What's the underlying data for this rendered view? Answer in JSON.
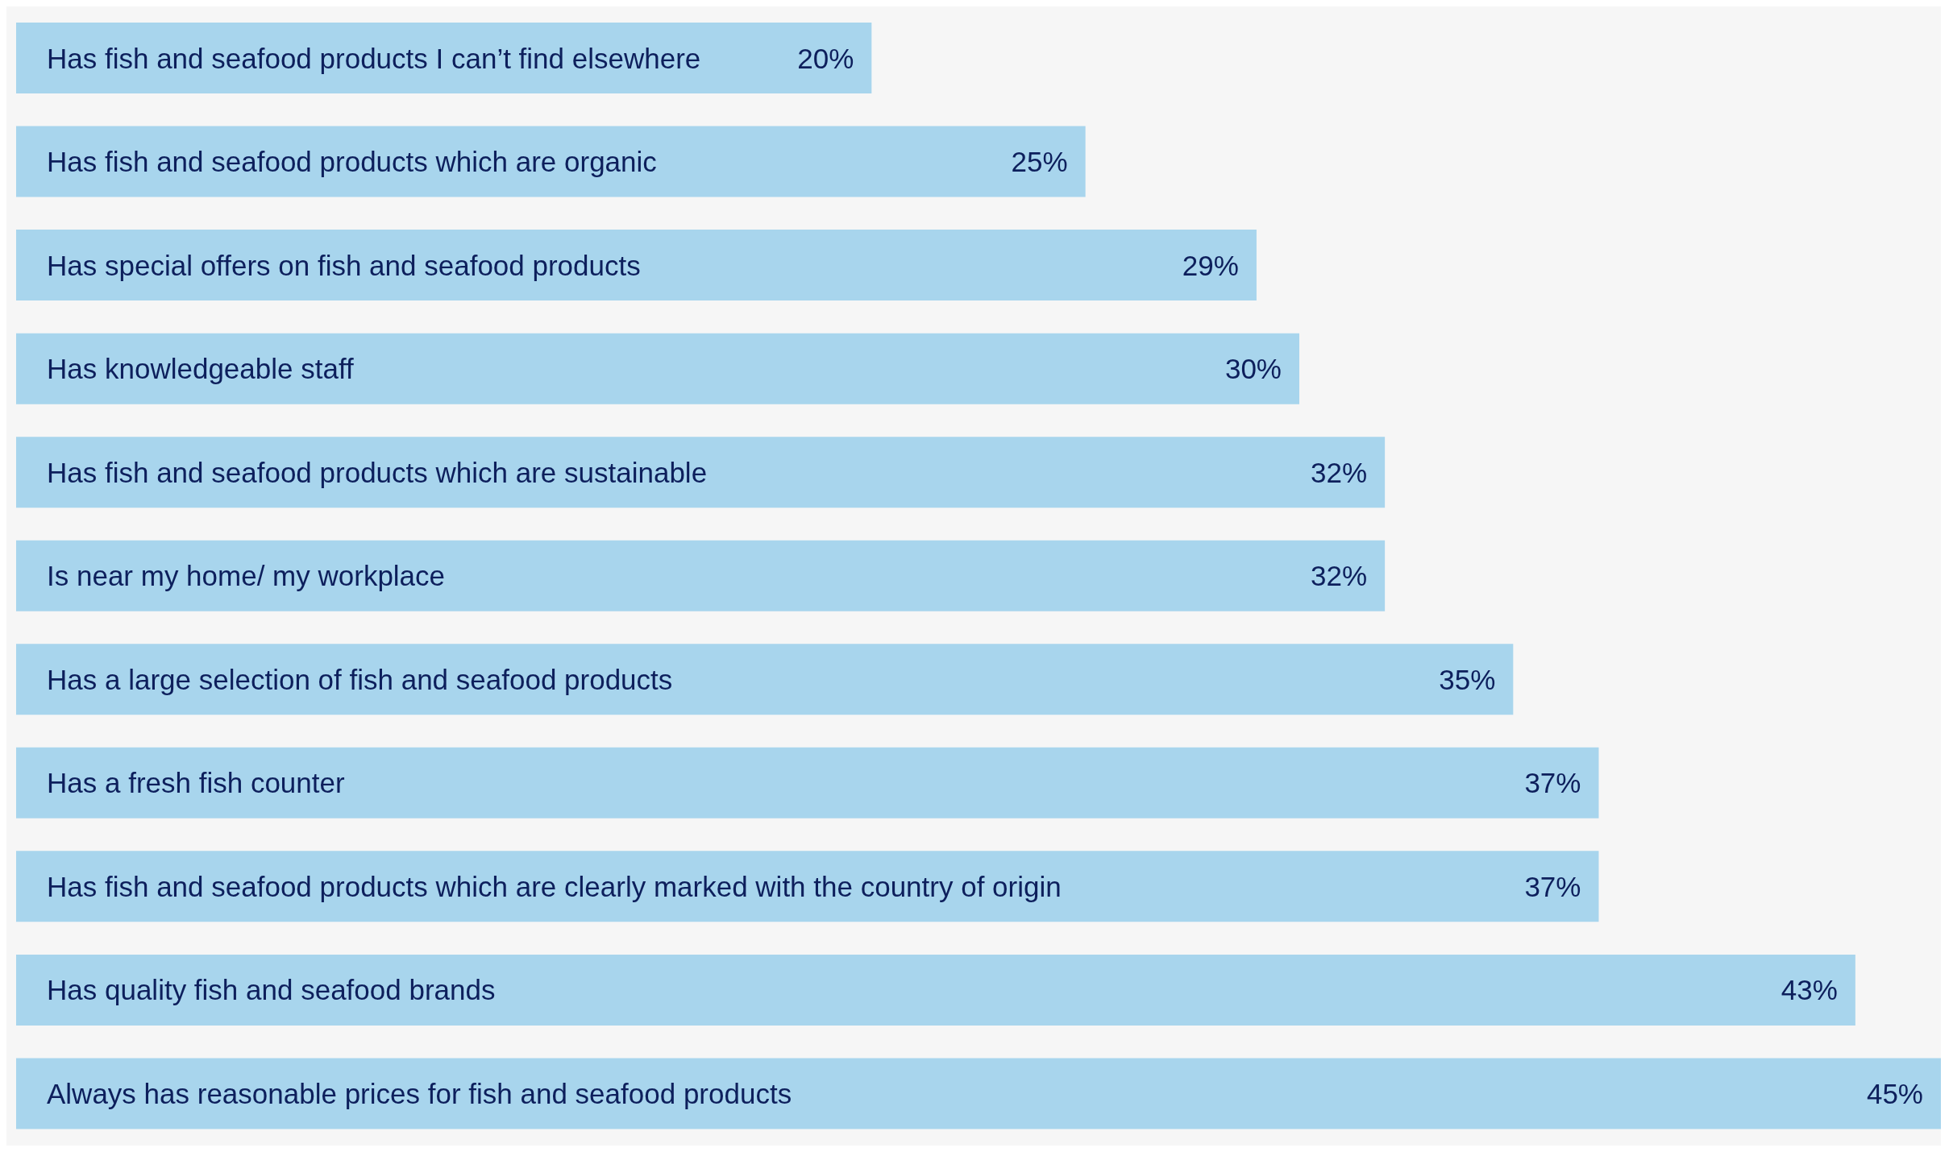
{
  "chart_data": {
    "type": "bar",
    "orientation": "horizontal",
    "color": "#a8d5ed",
    "categories": [
      "Has fish and seafood products I can’t find elsewhere",
      "Has fish and seafood products which are organic",
      "Has special offers on fish and seafood products",
      "Has knowledgeable staff",
      "Has fish and seafood products which are sustainable",
      "Is near my home/ my workplace",
      "Has a large selection of fish and seafood products",
      "Has a fresh fish counter",
      "Has fish and seafood products which are clearly marked with the country of origin",
      "Has quality fish and seafood brands",
      "Always has reasonable prices for fish and seafood products"
    ],
    "values": [
      20,
      25,
      29,
      30,
      32,
      32,
      35,
      37,
      37,
      43,
      45
    ],
    "value_labels": [
      "20%",
      "25%",
      "29%",
      "30%",
      "32%",
      "32%",
      "35%",
      "37%",
      "37%",
      "43%",
      "45%"
    ]
  }
}
